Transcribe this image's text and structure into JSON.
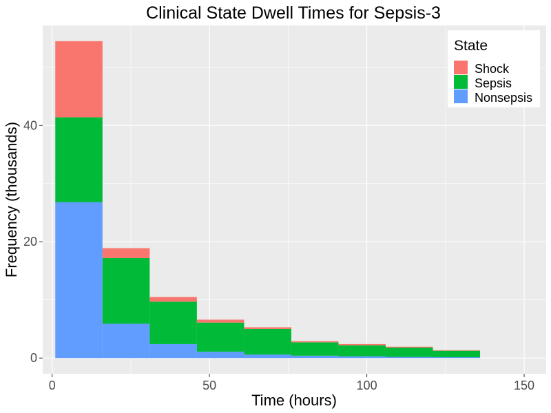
{
  "chart_data": {
    "type": "bar",
    "stacked": true,
    "title": "Clinical State Dwell Times for Sepsis-3",
    "xlabel": "Time (hours)",
    "ylabel": "Frequency (thousands)",
    "xlim": [
      -3,
      157
    ],
    "ylim": [
      -2.7,
      57.2
    ],
    "xticks": [
      0,
      50,
      100,
      150
    ],
    "yticks": [
      0,
      20,
      40
    ],
    "grid": true,
    "bin_width": 15,
    "bins": [
      [
        1,
        16
      ],
      [
        16,
        31
      ],
      [
        31,
        46
      ],
      [
        46,
        61
      ],
      [
        61,
        76
      ],
      [
        76,
        91
      ],
      [
        91,
        106
      ],
      [
        106,
        121
      ],
      [
        121,
        136
      ]
    ],
    "series": [
      {
        "name": "Nonsepsis",
        "color": "#619CFF",
        "values": [
          26.8,
          5.9,
          2.4,
          1.1,
          0.6,
          0.4,
          0.3,
          0.2,
          0.15
        ]
      },
      {
        "name": "Sepsis",
        "color": "#00BA38",
        "values": [
          14.6,
          11.3,
          7.3,
          5.0,
          4.4,
          2.3,
          1.9,
          1.6,
          1.1
        ]
      },
      {
        "name": "Shock",
        "color": "#F8766D",
        "values": [
          13.1,
          1.7,
          0.8,
          0.5,
          0.3,
          0.2,
          0.2,
          0.15,
          0.1
        ]
      }
    ],
    "legend": {
      "title": "State",
      "position": "top-right",
      "items": [
        {
          "name": "Shock",
          "color": "#F8766D"
        },
        {
          "name": "Sepsis",
          "color": "#00BA38"
        },
        {
          "name": "Nonsepsis",
          "color": "#619CFF"
        }
      ]
    },
    "panel_color": "#EBEBEB",
    "grid_color": "#FFFFFF"
  }
}
